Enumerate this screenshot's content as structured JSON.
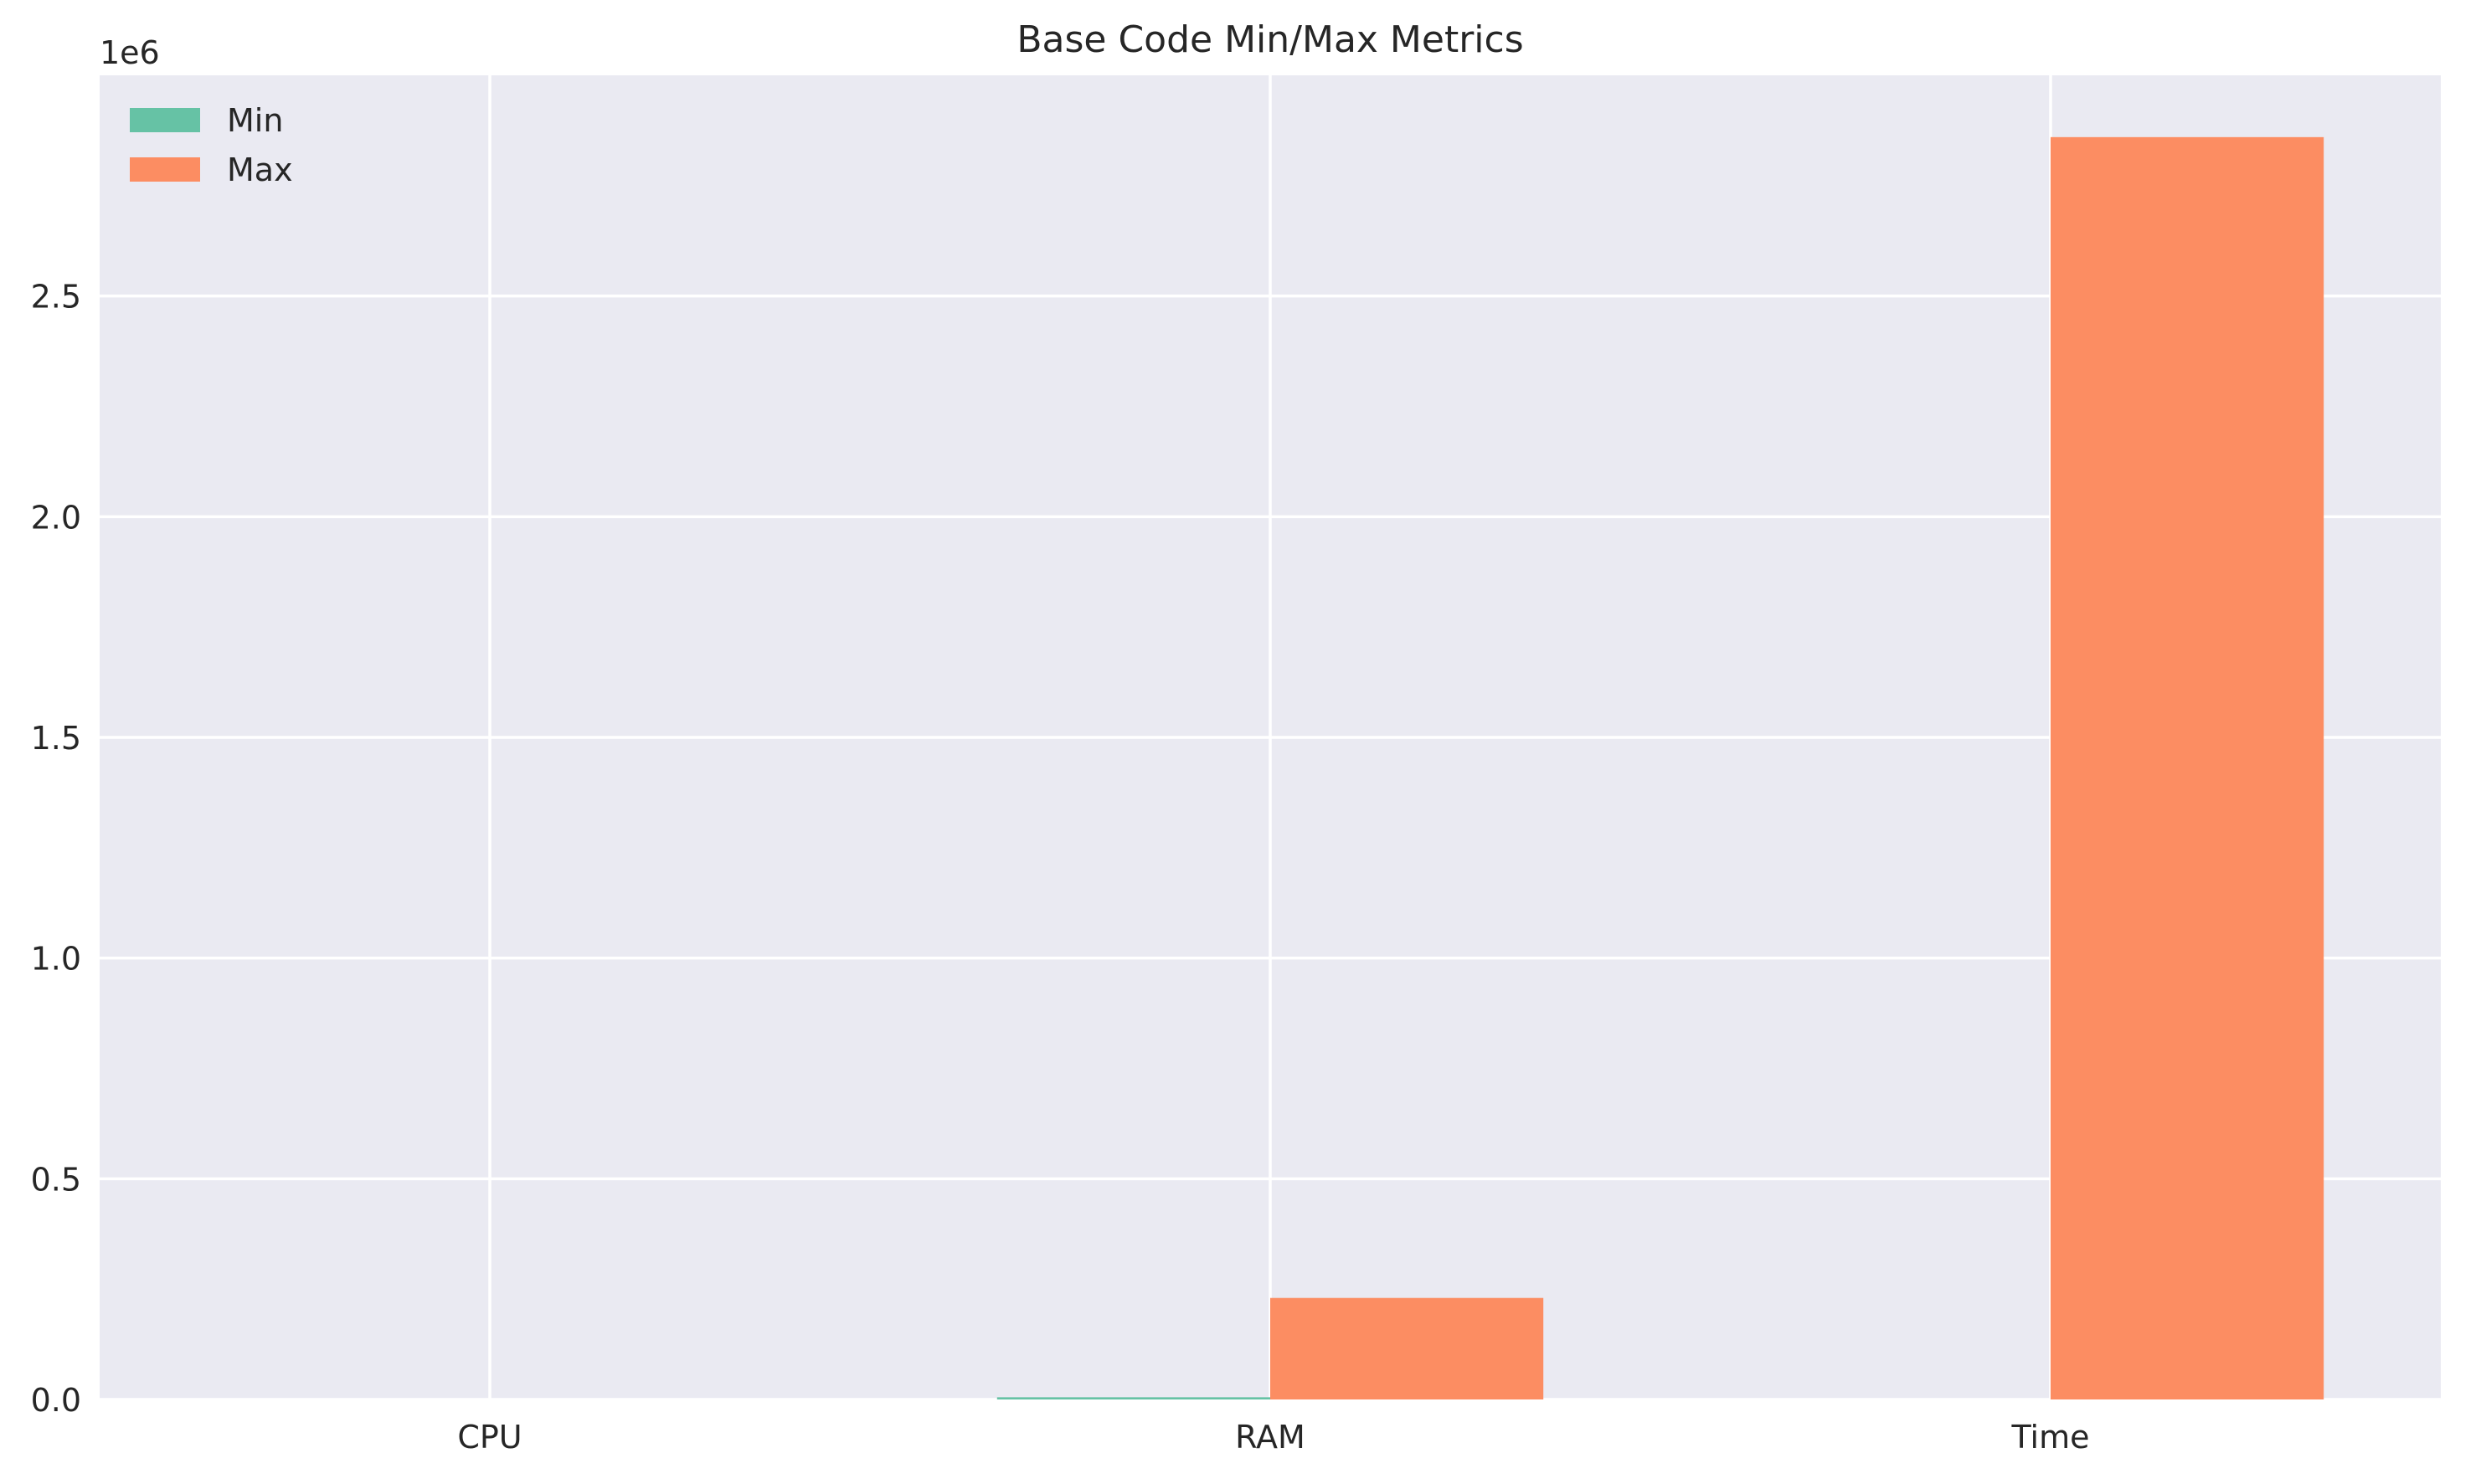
{
  "chart_data": {
    "type": "bar",
    "title": "Base Code Min/Max Metrics",
    "xlabel": "",
    "ylabel": "",
    "categories": [
      "CPU",
      "RAM",
      "Time"
    ],
    "series": [
      {
        "name": "Min",
        "color": "#66c2a5",
        "values": [
          0,
          5000,
          0
        ]
      },
      {
        "name": "Max",
        "color": "#fc8d62",
        "values": [
          0,
          230000,
          2860000
        ]
      }
    ],
    "ylim": [
      0,
      3000000
    ],
    "yticks": [
      0,
      500000,
      1000000,
      1500000,
      2000000,
      2500000
    ],
    "ytick_labels": [
      "0.0",
      "0.5",
      "1.0",
      "1.5",
      "2.0",
      "2.5"
    ],
    "y_offset_label": "1e6",
    "grid": true,
    "legend_position": "top-left",
    "background": "#eaeaf2",
    "grid_color": "#ffffff"
  }
}
